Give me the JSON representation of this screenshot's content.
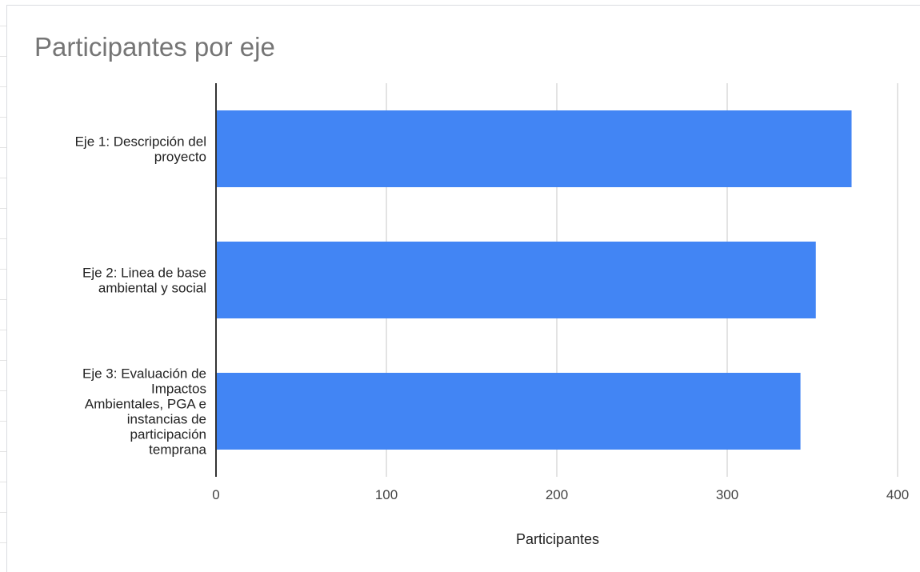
{
  "chart_data": {
    "type": "bar",
    "orientation": "horizontal",
    "title": "Participantes por eje",
    "xlabel": "Participantes",
    "ylabel": "",
    "categories": [
      "Eje 1: Descripción del proyecto",
      "Eje 2: Linea de base ambiental y social",
      "Eje 3: Evaluación de Impactos Ambientales, PGA e instancias de participación temprana"
    ],
    "category_lines": [
      [
        "Eje 1: Descripción del",
        "proyecto"
      ],
      [
        "Eje 2: Linea de base",
        "ambiental y social"
      ],
      [
        "Eje 3: Evaluación de",
        "Impactos",
        "Ambientales, PGA e",
        "instancias de",
        "participación",
        "temprana"
      ]
    ],
    "values": [
      373,
      352,
      343
    ],
    "xlim": [
      0,
      400
    ],
    "xticks": [
      0,
      100,
      200,
      300,
      400
    ],
    "grid": true,
    "legend": "none",
    "bar_color": "#4285f4",
    "grid_color": "#d0d0d0",
    "axis_color": "#333333"
  }
}
